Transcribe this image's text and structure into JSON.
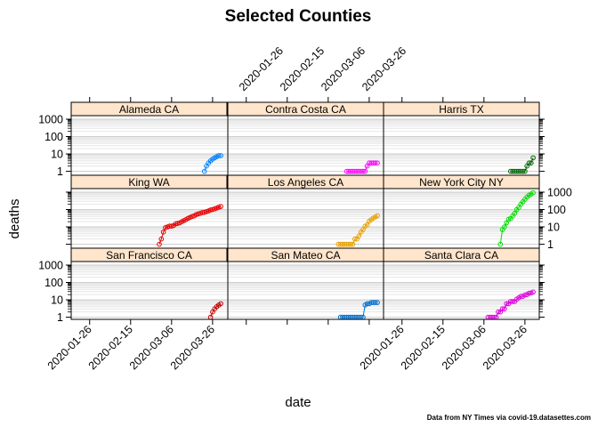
{
  "chart_data": {
    "type": "scatter",
    "title": "Selected Counties",
    "xlabel": "date",
    "ylabel": "deaths",
    "caption": "Data from NY Times via covid-19.datasettes.com",
    "x_range": [
      "2020-01-17",
      "2020-04-02"
    ],
    "y_scale": "log10",
    "y_range": [
      0.75,
      1600
    ],
    "x_ticks": [
      "2020-01-26",
      "2020-02-15",
      "2020-03-06",
      "2020-03-26"
    ],
    "y_ticks": [
      1,
      10,
      100,
      1000
    ],
    "grid": true,
    "layout": "3x3 panels",
    "panels": [
      {
        "name": "Alameda CA",
        "color": "#0080ff",
        "x": [
          "2020-03-22",
          "2020-03-23",
          "2020-03-24",
          "2020-03-25",
          "2020-03-26",
          "2020-03-27",
          "2020-03-28",
          "2020-03-29",
          "2020-03-30"
        ],
        "values": [
          1,
          2,
          3,
          4,
          5,
          6,
          7,
          8,
          8
        ]
      },
      {
        "name": "Contra Costa CA",
        "color": "#ff00ff",
        "x": [
          "2020-03-15",
          "2020-03-16",
          "2020-03-17",
          "2020-03-18",
          "2020-03-19",
          "2020-03-20",
          "2020-03-21",
          "2020-03-22",
          "2020-03-23",
          "2020-03-24",
          "2020-03-25",
          "2020-03-26",
          "2020-03-27",
          "2020-03-28",
          "2020-03-29",
          "2020-03-30"
        ],
        "values": [
          1,
          1,
          1,
          1,
          1,
          1,
          1,
          1,
          1,
          1,
          2,
          3,
          3,
          3,
          3,
          3
        ]
      },
      {
        "name": "Harris TX",
        "color": "#006400",
        "x": [
          "2020-03-19",
          "2020-03-20",
          "2020-03-21",
          "2020-03-22",
          "2020-03-23",
          "2020-03-24",
          "2020-03-25",
          "2020-03-26",
          "2020-03-27",
          "2020-03-28",
          "2020-03-29",
          "2020-03-30"
        ],
        "values": [
          1,
          1,
          1,
          1,
          1,
          1,
          1,
          1,
          2,
          3,
          3,
          6
        ]
      },
      {
        "name": "King WA",
        "color": "#e60000",
        "x": [
          "2020-02-29",
          "2020-03-01",
          "2020-03-02",
          "2020-03-03",
          "2020-03-04",
          "2020-03-05",
          "2020-03-06",
          "2020-03-07",
          "2020-03-08",
          "2020-03-09",
          "2020-03-10",
          "2020-03-11",
          "2020-03-12",
          "2020-03-13",
          "2020-03-14",
          "2020-03-15",
          "2020-03-16",
          "2020-03-17",
          "2020-03-18",
          "2020-03-19",
          "2020-03-20",
          "2020-03-21",
          "2020-03-22",
          "2020-03-23",
          "2020-03-24",
          "2020-03-25",
          "2020-03-26",
          "2020-03-27",
          "2020-03-28",
          "2020-03-29",
          "2020-03-30"
        ],
        "values": [
          1,
          2,
          5,
          9,
          10,
          11,
          11,
          12,
          15,
          16,
          17,
          20,
          23,
          26,
          31,
          35,
          40,
          43,
          51,
          56,
          60,
          67,
          69,
          75,
          83,
          94,
          100,
          109,
          121,
          135,
          150
        ]
      },
      {
        "name": "Los Angeles CA",
        "color": "#e6a000",
        "x": [
          "2020-03-11",
          "2020-03-12",
          "2020-03-13",
          "2020-03-14",
          "2020-03-15",
          "2020-03-16",
          "2020-03-17",
          "2020-03-18",
          "2020-03-19",
          "2020-03-20",
          "2020-03-21",
          "2020-03-22",
          "2020-03-23",
          "2020-03-24",
          "2020-03-25",
          "2020-03-26",
          "2020-03-27",
          "2020-03-28",
          "2020-03-29",
          "2020-03-30"
        ],
        "values": [
          1,
          1,
          1,
          1,
          1,
          1,
          1,
          1,
          2,
          2,
          3,
          5,
          7,
          11,
          13,
          21,
          26,
          32,
          37,
          44
        ]
      },
      {
        "name": "New York City NY",
        "color": "#00dd00",
        "x": [
          "2020-03-14",
          "2020-03-15",
          "2020-03-16",
          "2020-03-17",
          "2020-03-18",
          "2020-03-19",
          "2020-03-20",
          "2020-03-21",
          "2020-03-22",
          "2020-03-23",
          "2020-03-24",
          "2020-03-25",
          "2020-03-26",
          "2020-03-27",
          "2020-03-28",
          "2020-03-29",
          "2020-03-30"
        ],
        "values": [
          1,
          7,
          10,
          17,
          27,
          30,
          43,
          60,
          99,
          131,
          200,
          280,
          385,
          519,
          672,
          776,
          914
        ]
      },
      {
        "name": "San Francisco CA",
        "color": "#c00000",
        "x": [
          "2020-03-25",
          "2020-03-26",
          "2020-03-27",
          "2020-03-28",
          "2020-03-29",
          "2020-03-30"
        ],
        "values": [
          1,
          2,
          3,
          4,
          5,
          6
        ]
      },
      {
        "name": "San Mateo CA",
        "color": "#0070d0",
        "x": [
          "2020-03-12",
          "2020-03-13",
          "2020-03-14",
          "2020-03-15",
          "2020-03-16",
          "2020-03-17",
          "2020-03-18",
          "2020-03-19",
          "2020-03-20",
          "2020-03-21",
          "2020-03-22",
          "2020-03-23",
          "2020-03-24",
          "2020-03-25",
          "2020-03-26",
          "2020-03-27",
          "2020-03-28",
          "2020-03-29",
          "2020-03-30"
        ],
        "values": [
          1,
          1,
          1,
          1,
          1,
          1,
          1,
          1,
          1,
          1,
          1,
          1,
          5,
          6,
          6,
          7,
          7,
          7,
          7
        ]
      },
      {
        "name": "Santa Clara CA",
        "color": "#dd00dd",
        "x": [
          "2020-03-08",
          "2020-03-09",
          "2020-03-10",
          "2020-03-11",
          "2020-03-12",
          "2020-03-13",
          "2020-03-14",
          "2020-03-15",
          "2020-03-16",
          "2020-03-17",
          "2020-03-18",
          "2020-03-19",
          "2020-03-20",
          "2020-03-21",
          "2020-03-22",
          "2020-03-23",
          "2020-03-24",
          "2020-03-25",
          "2020-03-26",
          "2020-03-27",
          "2020-03-28",
          "2020-03-29",
          "2020-03-30"
        ],
        "values": [
          1,
          1,
          1,
          1,
          1,
          2,
          2,
          3,
          3,
          6,
          6,
          8,
          8,
          8,
          11,
          13,
          16,
          16,
          19,
          20,
          24,
          25,
          28
        ]
      }
    ]
  }
}
